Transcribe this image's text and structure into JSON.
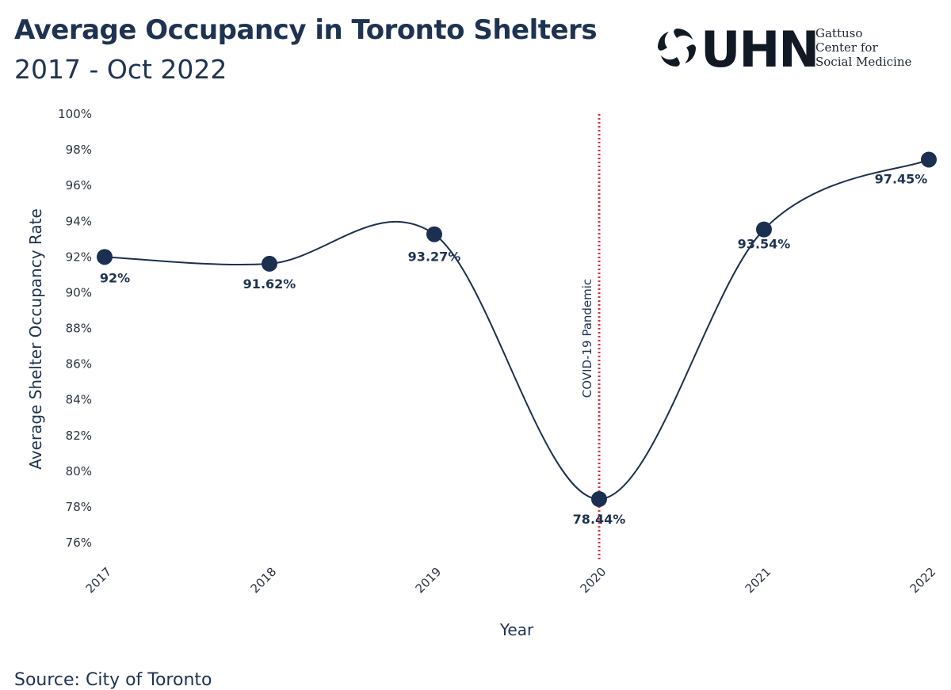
{
  "title": "Average Occupancy in Toronto Shelters",
  "subtitle": "2017 - Oct 2022",
  "logo": {
    "text": "UHN",
    "subtext_lines": [
      "Gattuso",
      "Center for",
      "Social Medicine"
    ]
  },
  "source": "Source: City of Toronto",
  "annotation": {
    "x": "2020",
    "label": "COVID-19 Pandemic",
    "color": "#e0303d"
  },
  "colors": {
    "line": "#1b3050",
    "marker": "#1b3050"
  },
  "chart_data": {
    "type": "line",
    "categories": [
      "2017",
      "2018",
      "2019",
      "2020",
      "2021",
      "2022"
    ],
    "values": [
      92.0,
      91.62,
      93.27,
      78.44,
      93.54,
      97.45
    ],
    "data_labels": [
      "92%",
      "91.62%",
      "93.27%",
      "78.44%",
      "93.54%",
      "97.45%"
    ],
    "xlabel": "Year",
    "ylabel": "Average Shelter Occupancy Rate",
    "ylim": [
      76,
      100
    ],
    "yticks": [
      "76%",
      "78%",
      "80%",
      "82%",
      "84%",
      "86%",
      "88%",
      "90%",
      "92%",
      "94%",
      "96%",
      "98%",
      "100%"
    ],
    "grid": false,
    "legend": "none"
  }
}
